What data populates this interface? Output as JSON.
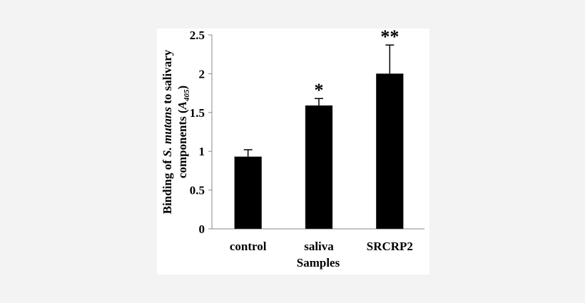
{
  "chart_data": {
    "type": "bar",
    "categories": [
      "control",
      "saliva",
      "SRCRP2"
    ],
    "values": [
      0.93,
      1.59,
      2.0
    ],
    "error_upper": [
      1.02,
      1.68,
      2.37
    ],
    "annotations": [
      "",
      "*",
      "**"
    ],
    "xlabel": "Samples",
    "ylabel_parts": {
      "line1_pre": "Binding of ",
      "line1_italic": "S. mutans",
      "line1_post": " to salivary",
      "line2_pre": "components (",
      "line2_italic": "A",
      "line2_sub": "405",
      "line2_post": ")"
    },
    "yticks": [
      "0",
      "0.5",
      "1",
      "1.5",
      "2",
      "2.5"
    ],
    "ylim": [
      0,
      2.5
    ],
    "grid": false,
    "bar_color": "#000000",
    "background": "#ffffff"
  }
}
